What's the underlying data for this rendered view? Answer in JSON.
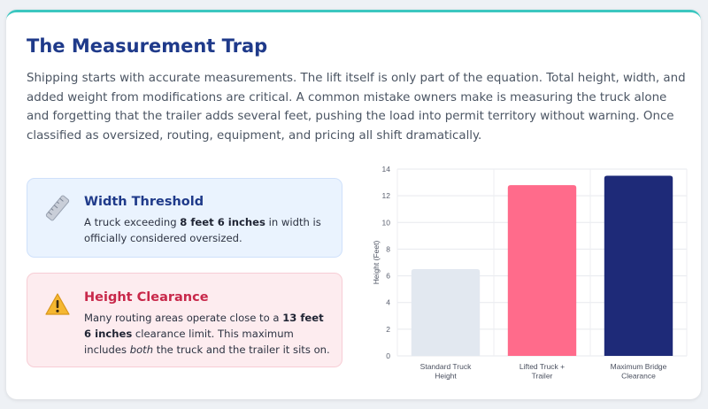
{
  "header": {
    "title": "The Measurement Trap",
    "intro": "Shipping starts with accurate measurements. The lift itself is only part of the equation. Total height, width, and added weight from modifications are critical. A common mistake owners make is measuring the truck alone and forgetting that the trailer adds several feet, pushing the load into permit territory without warning. Once classified as oversized, routing, equipment, and pricing all shift dramatically."
  },
  "width_card": {
    "icon": "ruler-icon",
    "title": "Width Threshold",
    "text_1": "A truck exceeding ",
    "text_bold": "8 feet 6 inches",
    "text_2": " in width is officially considered oversized."
  },
  "height_card": {
    "icon": "warning-icon",
    "title": "Height Clearance",
    "text_1": "Many routing areas operate close to a ",
    "text_bold": "13 feet 6 inches",
    "text_2": " clearance limit. This maximum includes ",
    "text_italic": "both",
    "text_3": " the truck and the trailer it sits on."
  },
  "colors": {
    "title": "#1f3a8a",
    "accent_teal": "#3cc7c0",
    "height_title": "#c8284a"
  },
  "chart_data": {
    "type": "bar",
    "categories": [
      "Standard Truck Height",
      "Lifted Truck + Trailer",
      "Maximum Bridge Clearance"
    ],
    "category_lines": [
      [
        "Standard Truck",
        "Height"
      ],
      [
        "Lifted Truck +",
        "Trailer"
      ],
      [
        "Maximum Bridge",
        "Clearance"
      ]
    ],
    "values": [
      6.5,
      12.8,
      13.5
    ],
    "colors": [
      "#e2e8f0",
      "#ff6b8b",
      "#1e2a78"
    ],
    "ylabel": "Height (Feet)",
    "xlabel": "",
    "ylim": [
      0,
      14
    ],
    "yticks": [
      0,
      2,
      4,
      6,
      8,
      10,
      12,
      14
    ],
    "grid": true,
    "legend": "none"
  }
}
